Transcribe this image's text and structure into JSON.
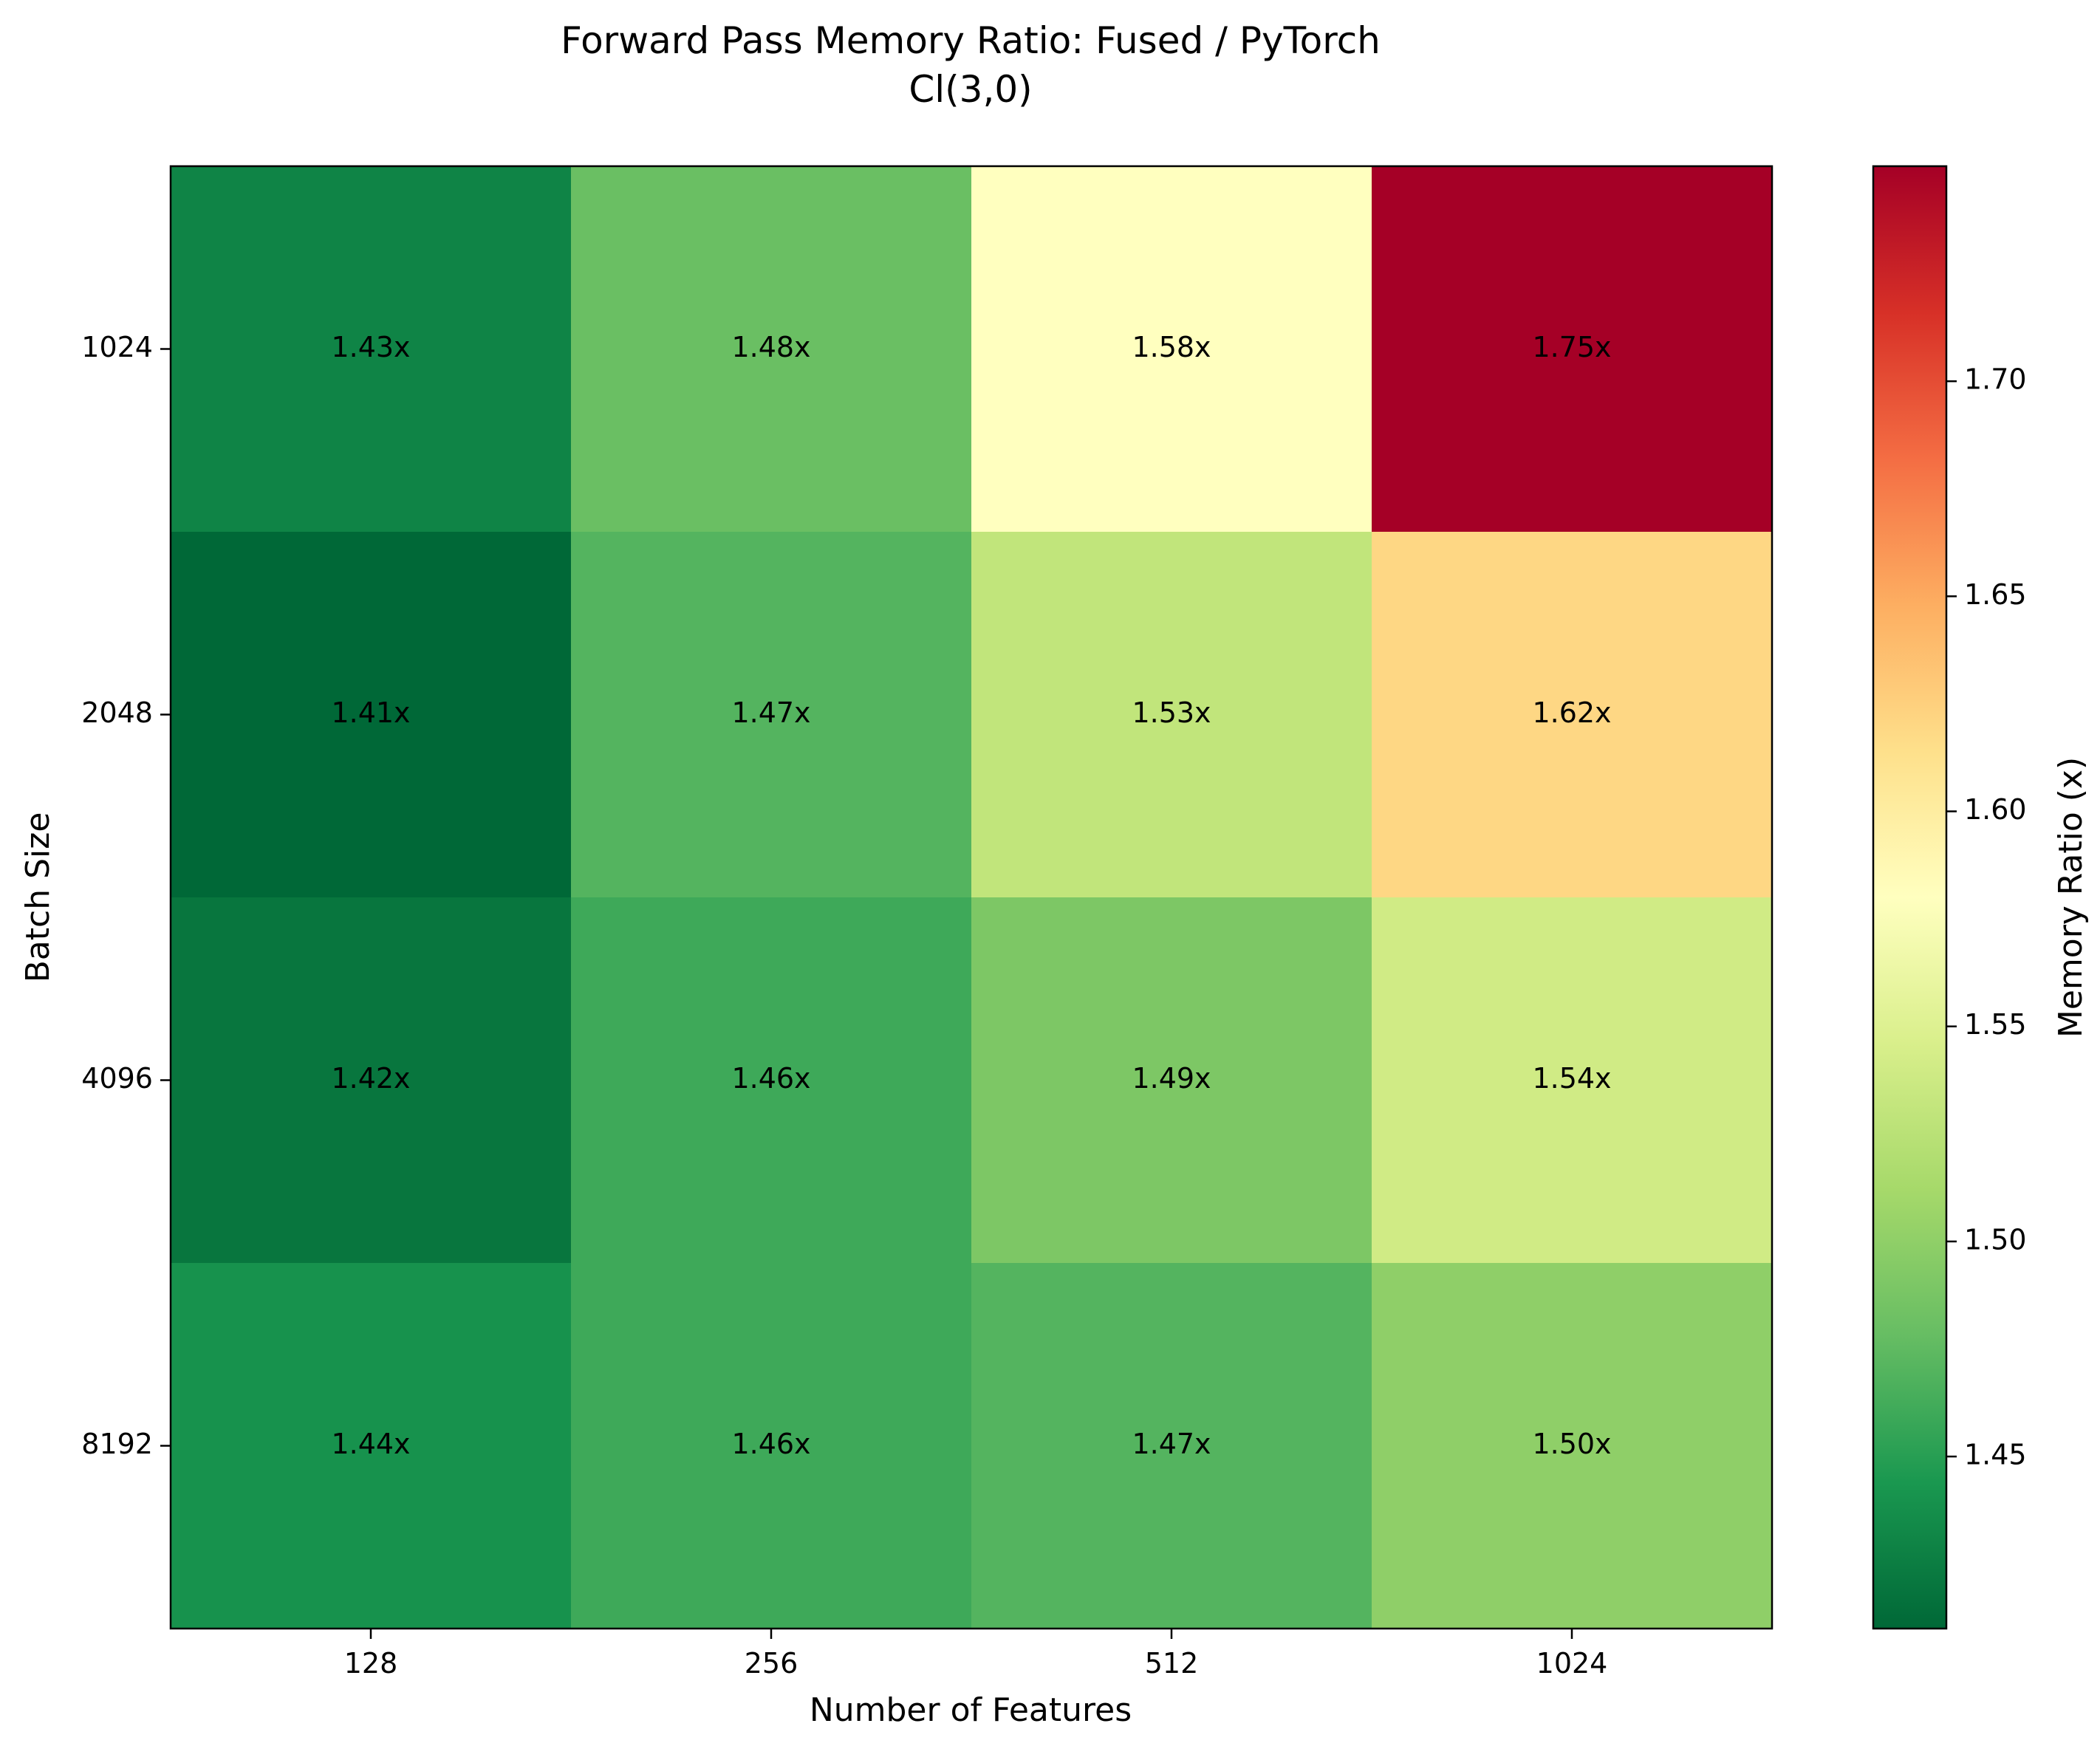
{
  "chart_data": {
    "type": "heatmap",
    "title": "Forward Pass Memory Ratio: Fused / PyTorch",
    "subtitle": "Cl(3,0)",
    "xlabel": "Number of Features",
    "ylabel": "Batch Size",
    "x_categories": [
      "128",
      "256",
      "512",
      "1024"
    ],
    "y_categories": [
      "1024",
      "2048",
      "4096",
      "8192"
    ],
    "values": [
      [
        1.43,
        1.48,
        1.58,
        1.75
      ],
      [
        1.41,
        1.47,
        1.53,
        1.62
      ],
      [
        1.42,
        1.46,
        1.49,
        1.54
      ],
      [
        1.44,
        1.46,
        1.47,
        1.5
      ]
    ],
    "cell_labels": [
      [
        "1.43x",
        "1.48x",
        "1.58x",
        "1.75x"
      ],
      [
        "1.41x",
        "1.47x",
        "1.53x",
        "1.62x"
      ],
      [
        "1.42x",
        "1.46x",
        "1.49x",
        "1.54x"
      ],
      [
        "1.44x",
        "1.46x",
        "1.47x",
        "1.50x"
      ]
    ],
    "colormap": "RdYlGn_r",
    "color_range": [
      1.41,
      1.75
    ],
    "colorbar": {
      "label": "Memory Ratio (x)",
      "ticks": [
        1.45,
        1.5,
        1.55,
        1.6,
        1.65,
        1.7
      ],
      "tick_labels": [
        "1.45",
        "1.50",
        "1.55",
        "1.60",
        "1.65",
        "1.70"
      ]
    }
  }
}
